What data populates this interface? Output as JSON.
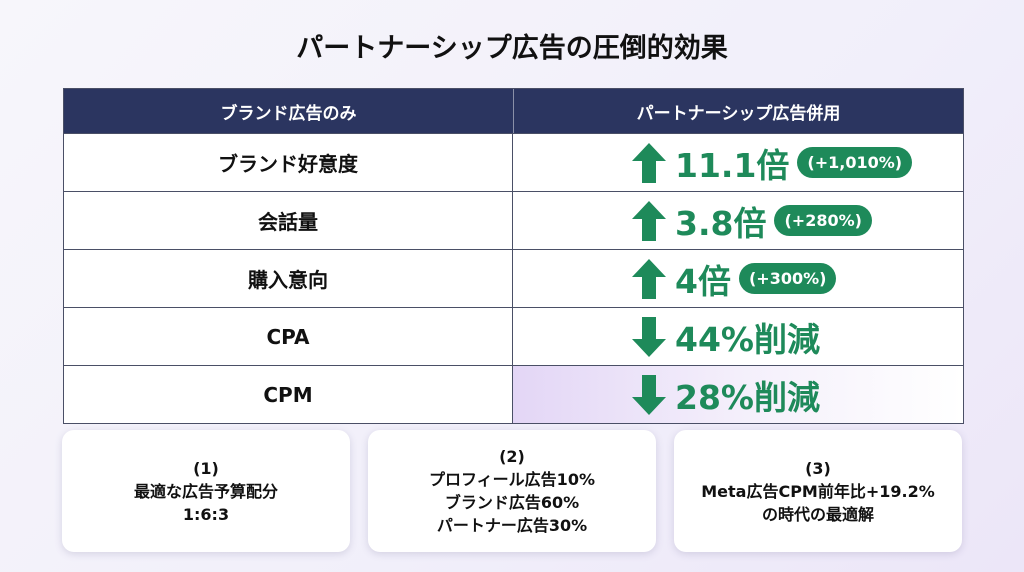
{
  "title": "パートナーシップ広告の圧倒的効果",
  "table": {
    "header": [
      "ブランド広告のみ",
      "パートナーシップ広告併用"
    ],
    "rows": [
      {
        "metric": "ブランド好意度",
        "direction": "up",
        "result": "11.1倍",
        "detail": "(+1,010%)"
      },
      {
        "metric": "会話量",
        "direction": "up",
        "result": "3.8倍",
        "detail": "(+280%)"
      },
      {
        "metric": "購入意向",
        "direction": "up",
        "result": "4倍",
        "detail": "(+300%)"
      },
      {
        "metric": "CPA",
        "direction": "down",
        "result": "44%削減"
      },
      {
        "metric": "CPM",
        "direction": "down",
        "result": "28%削減"
      }
    ]
  },
  "cards": [
    {
      "lines": [
        "(1)",
        "最適な広告予算配分",
        "1:6:3"
      ]
    },
    {
      "lines": [
        "(2)",
        "プロフィール広告10%",
        "ブランド広告60%",
        "パートナー広告30%"
      ]
    },
    {
      "lines": [
        "(3)",
        "Meta広告CPM前年比+19.2%",
        "の時代の最適解"
      ]
    }
  ]
}
